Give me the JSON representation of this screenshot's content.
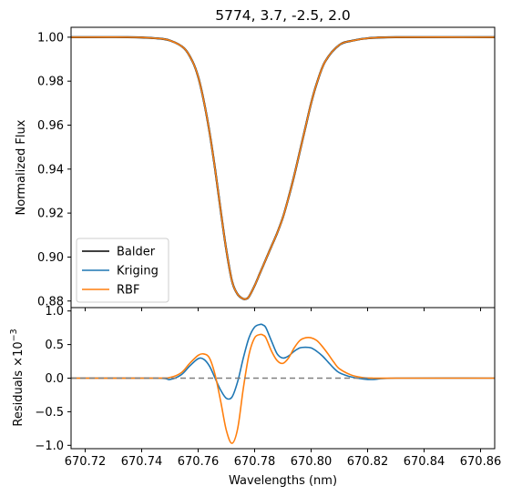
{
  "chart_data": [
    {
      "type": "line",
      "title": "5774, 3.7, -2.5, 2.0",
      "xlabel": "",
      "ylabel": "Normalized Flux",
      "xlim": [
        670.715,
        670.865
      ],
      "ylim": [
        0.877,
        1.0045
      ],
      "yticks": [
        0.88,
        0.9,
        0.92,
        0.94,
        0.96,
        0.98,
        1.0
      ],
      "ytick_labels": [
        "0.88",
        "0.90",
        "0.92",
        "0.94",
        "0.96",
        "0.98",
        "1.00"
      ],
      "legend": {
        "placement": "lower-left",
        "entries": [
          "Balder",
          "Kriging",
          "RBF"
        ]
      },
      "series": [
        {
          "name": "Balder",
          "color": "#000000",
          "x": [
            670.715,
            670.735,
            670.745,
            670.75,
            670.755,
            670.758,
            670.76,
            670.762,
            670.764,
            670.766,
            670.768,
            670.77,
            670.772,
            670.774,
            670.776,
            670.777,
            670.778,
            670.78,
            670.782,
            670.784,
            670.786,
            670.788,
            670.79,
            670.792,
            670.794,
            670.796,
            670.798,
            670.8,
            670.802,
            670.805,
            670.81,
            670.815,
            670.82,
            670.83,
            670.865
          ],
          "y": [
            1.0,
            1.0,
            0.9995,
            0.9985,
            0.995,
            0.989,
            0.982,
            0.971,
            0.957,
            0.94,
            0.921,
            0.903,
            0.889,
            0.883,
            0.881,
            0.881,
            0.882,
            0.887,
            0.893,
            0.899,
            0.905,
            0.911,
            0.918,
            0.927,
            0.937,
            0.948,
            0.959,
            0.97,
            0.979,
            0.989,
            0.9965,
            0.9985,
            0.9995,
            1.0,
            1.0
          ]
        },
        {
          "name": "Kriging",
          "color": "#1f77b4",
          "x": [
            670.715,
            670.735,
            670.745,
            670.75,
            670.755,
            670.758,
            670.76,
            670.762,
            670.764,
            670.766,
            670.768,
            670.77,
            670.772,
            670.774,
            670.776,
            670.777,
            670.778,
            670.78,
            670.782,
            670.784,
            670.786,
            670.788,
            670.79,
            670.792,
            670.794,
            670.796,
            670.798,
            670.8,
            670.802,
            670.805,
            670.81,
            670.815,
            670.82,
            670.83,
            670.865
          ],
          "y": [
            1.0,
            1.0,
            0.9995,
            0.9985,
            0.995,
            0.989,
            0.982,
            0.971,
            0.957,
            0.94,
            0.921,
            0.903,
            0.889,
            0.883,
            0.881,
            0.881,
            0.882,
            0.887,
            0.893,
            0.899,
            0.905,
            0.911,
            0.918,
            0.927,
            0.937,
            0.948,
            0.959,
            0.97,
            0.979,
            0.989,
            0.9965,
            0.9985,
            0.9995,
            1.0,
            1.0
          ]
        },
        {
          "name": "RBF",
          "color": "#ff7f0e",
          "x": [
            670.715,
            670.735,
            670.745,
            670.75,
            670.755,
            670.758,
            670.76,
            670.762,
            670.764,
            670.766,
            670.768,
            670.77,
            670.772,
            670.774,
            670.776,
            670.777,
            670.778,
            670.78,
            670.782,
            670.784,
            670.786,
            670.788,
            670.79,
            670.792,
            670.794,
            670.796,
            670.798,
            670.8,
            670.802,
            670.805,
            670.81,
            670.815,
            670.82,
            670.83,
            670.865
          ],
          "y": [
            1.0,
            1.0,
            0.9995,
            0.9985,
            0.995,
            0.989,
            0.982,
            0.971,
            0.957,
            0.94,
            0.921,
            0.903,
            0.889,
            0.883,
            0.881,
            0.881,
            0.882,
            0.887,
            0.893,
            0.899,
            0.905,
            0.911,
            0.918,
            0.927,
            0.937,
            0.948,
            0.959,
            0.97,
            0.979,
            0.989,
            0.9965,
            0.9985,
            0.9995,
            1.0,
            1.0
          ]
        }
      ]
    },
    {
      "type": "line",
      "title": "",
      "xlabel": "Wavelengths (nm)",
      "ylabel": "Residuals ×10",
      "ylabel_exponent": "−3",
      "xlim": [
        670.715,
        670.865
      ],
      "ylim": [
        -1.05,
        1.05
      ],
      "xticks": [
        670.72,
        670.74,
        670.76,
        670.78,
        670.8,
        670.82,
        670.84,
        670.86
      ],
      "xtick_labels": [
        "670.72",
        "670.74",
        "670.76",
        "670.78",
        "670.80",
        "670.82",
        "670.84",
        "670.86"
      ],
      "yticks": [
        -1.0,
        -0.5,
        0.0,
        0.5,
        1.0
      ],
      "ytick_labels": [
        "−1.0",
        "−0.5",
        "0.0",
        "0.5",
        "1.0"
      ],
      "zero_line": {
        "y": 0.0,
        "style": "dashed",
        "color": "#808080",
        "xrange": [
          670.715,
          670.82
        ]
      },
      "series": [
        {
          "name": "Kriging",
          "color": "#1f77b4",
          "x": [
            670.715,
            670.745,
            670.75,
            670.754,
            670.757,
            670.76,
            670.762,
            670.764,
            670.766,
            670.768,
            670.77,
            670.772,
            670.774,
            670.776,
            670.778,
            670.78,
            670.782,
            670.783,
            670.784,
            670.786,
            670.788,
            670.79,
            670.792,
            670.794,
            670.796,
            670.798,
            670.8,
            670.802,
            670.804,
            670.806,
            670.808,
            670.81,
            670.814,
            670.818,
            670.822,
            670.83,
            670.865
          ],
          "y": [
            0.0,
            0.0,
            -0.02,
            0.05,
            0.18,
            0.29,
            0.28,
            0.18,
            0.0,
            -0.18,
            -0.3,
            -0.28,
            -0.05,
            0.3,
            0.6,
            0.76,
            0.8,
            0.79,
            0.75,
            0.55,
            0.36,
            0.3,
            0.33,
            0.4,
            0.45,
            0.46,
            0.45,
            0.4,
            0.33,
            0.24,
            0.15,
            0.08,
            0.02,
            -0.01,
            -0.02,
            0.0,
            0.0
          ]
        },
        {
          "name": "RBF",
          "color": "#ff7f0e",
          "x": [
            670.715,
            670.745,
            670.75,
            670.754,
            670.757,
            670.76,
            670.762,
            670.764,
            670.766,
            670.768,
            670.77,
            670.772,
            670.774,
            670.776,
            670.778,
            670.78,
            670.782,
            670.783,
            670.784,
            670.786,
            670.788,
            670.79,
            670.792,
            670.794,
            670.796,
            670.798,
            670.8,
            670.802,
            670.804,
            670.806,
            670.808,
            670.81,
            670.814,
            670.818,
            670.822,
            670.83,
            670.865
          ],
          "y": [
            0.0,
            0.0,
            0.01,
            0.08,
            0.22,
            0.34,
            0.36,
            0.3,
            0.05,
            -0.35,
            -0.78,
            -0.97,
            -0.75,
            -0.15,
            0.35,
            0.6,
            0.65,
            0.64,
            0.6,
            0.4,
            0.26,
            0.22,
            0.3,
            0.45,
            0.56,
            0.6,
            0.6,
            0.56,
            0.47,
            0.36,
            0.24,
            0.14,
            0.05,
            0.01,
            0.0,
            0.0,
            0.0
          ]
        }
      ]
    }
  ]
}
